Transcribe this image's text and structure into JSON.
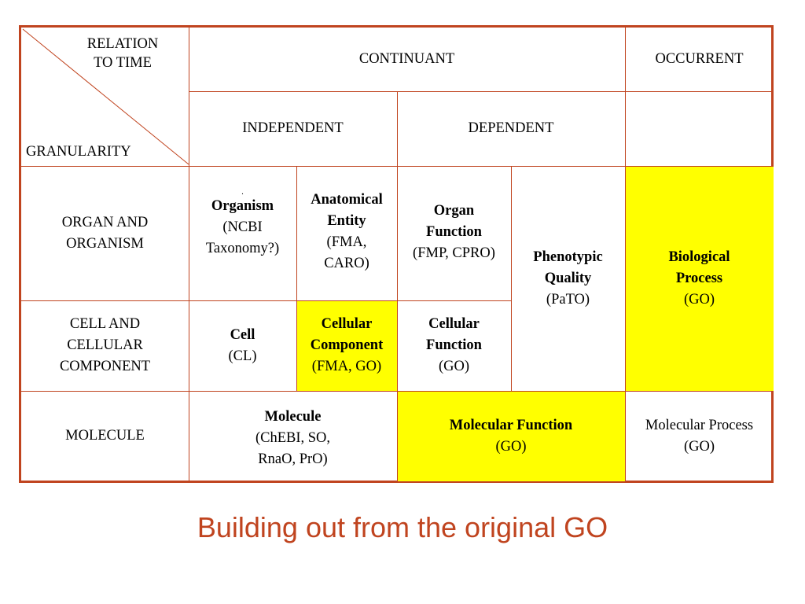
{
  "corner": {
    "top_line1": "RELATION",
    "top_line2": "TO TIME",
    "bottom": "GRANULARITY"
  },
  "header": {
    "continuant": "CONTINUANT",
    "occurrent": "OCCURRENT",
    "independent": "INDEPENDENT",
    "dependent": "DEPENDENT"
  },
  "rows": {
    "organ": {
      "line1": "ORGAN AND",
      "line2": "ORGANISM"
    },
    "cell": {
      "line1": "CELL AND",
      "line2": "CELLULAR",
      "line3": "COMPONENT"
    },
    "molecule": {
      "line1": "MOLECULE"
    }
  },
  "cells": {
    "organism": {
      "dot": ".",
      "title": "Organism",
      "sub1": "(NCBI",
      "sub2": "Taxonomy?)"
    },
    "anatomical": {
      "title1": "Anatomical",
      "title2": "Entity",
      "sub1": "(FMA,",
      "sub2": "CARO)"
    },
    "organ_function": {
      "title1": "Organ",
      "title2": "Function",
      "sub1": "(FMP, CPRO)"
    },
    "phenotypic": {
      "title1": "Phenotypic",
      "title2": "Quality",
      "sub1": "(PaTO)"
    },
    "biological": {
      "title1": "Biological",
      "title2": "Process",
      "sub1": "(GO)"
    },
    "cell": {
      "title1": "Cell",
      "sub1": "(CL)"
    },
    "cellular_component": {
      "title1": "Cellular",
      "title2": "Component",
      "sub1": "(FMA, GO)"
    },
    "cellular_function": {
      "title1": "Cellular",
      "title2": "Function",
      "sub1": "(GO)"
    },
    "molecule": {
      "title1": "Molecule",
      "sub1": "(ChEBI, SO,",
      "sub2": "RnaO, PrO)"
    },
    "molecular_function": {
      "title1": "Molecular Function",
      "sub1": "(GO)"
    },
    "molecular_process": {
      "line1": "Molecular Process",
      "line2": "(GO)"
    }
  },
  "colors": {
    "border": "#c0441f",
    "highlight": "#ffff00",
    "caption": "#c0441f"
  },
  "caption": "Building out from the original GO"
}
